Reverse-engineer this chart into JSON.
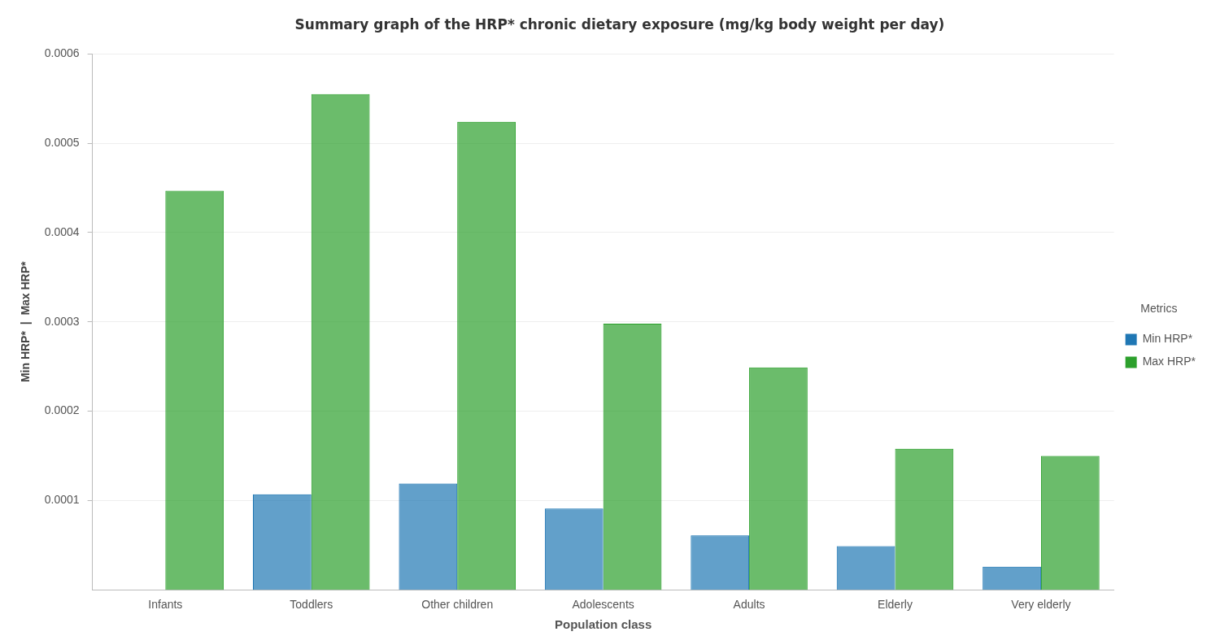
{
  "chart_data": {
    "type": "bar",
    "title": "Summary graph of the HRP* chronic dietary exposure (mg/kg body weight per day)",
    "xlabel": "Population class",
    "ylabel": "Min HRP*  |  Max HRP*",
    "legend_title": "Metrics",
    "categories": [
      "Infants",
      "Toddlers",
      "Other children",
      "Adolescents",
      "Adults",
      "Elderly",
      "Very elderly"
    ],
    "series": [
      {
        "name": "Min HRP*",
        "color": "#1f77b4",
        "values": [
          null,
          0.000107,
          0.000119,
          9.1e-05,
          6.1e-05,
          4.9e-05,
          2.6e-05
        ]
      },
      {
        "name": "Max HRP*",
        "color": "#2ca02c",
        "values": [
          0.000447,
          0.000555,
          0.000524,
          0.000298,
          0.000249,
          0.000158,
          0.00015
        ]
      }
    ],
    "ylim": [
      0,
      0.0006
    ],
    "yticks": [
      0.0001,
      0.0002,
      0.0003,
      0.0004,
      0.0005,
      0.0006
    ],
    "grid": "y",
    "legend": "right"
  }
}
